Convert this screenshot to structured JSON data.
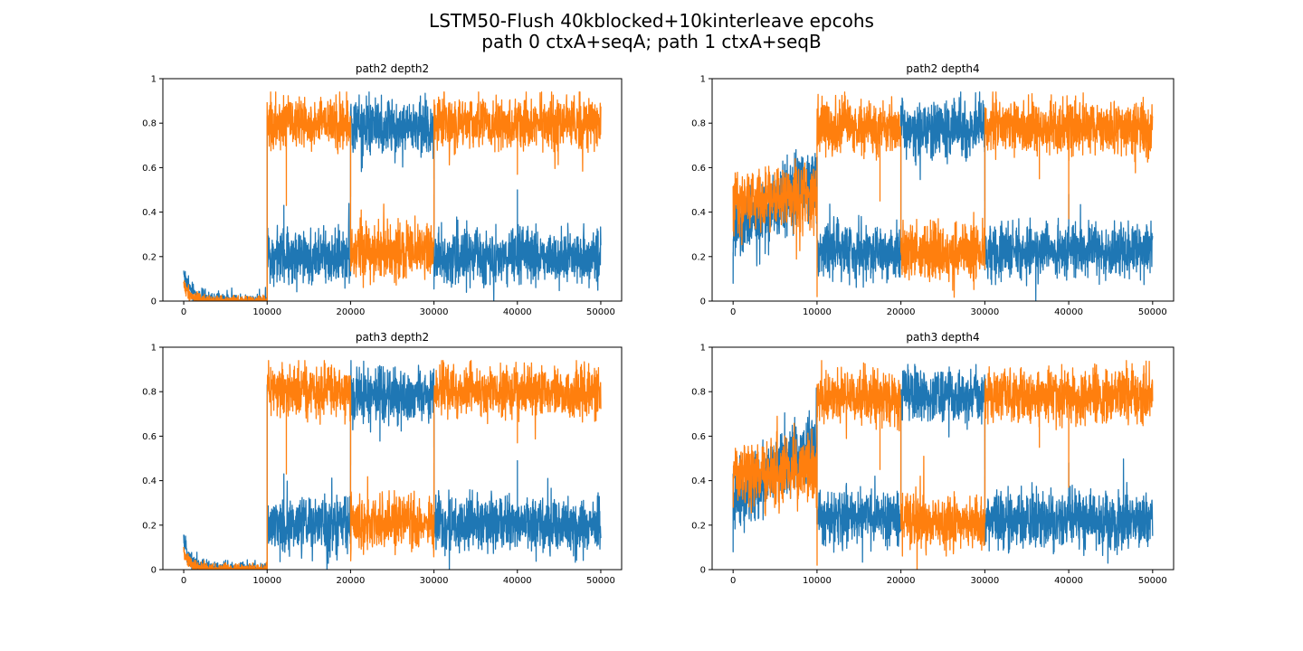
{
  "figure": {
    "title_line1": "LSTM50-Flush 40kblocked+10kinterleave epcohs",
    "title_line2": "path 0 ctxA+seqA; path 1 ctxA+seqB"
  },
  "colors": {
    "series_0": "#1f77b4",
    "series_1": "#ff7f0e"
  },
  "chart_data": [
    {
      "type": "line",
      "title": "path2 depth2",
      "xlim": [
        -2500,
        52500
      ],
      "ylim": [
        0,
        1
      ],
      "xticks": [
        0,
        10000,
        20000,
        30000,
        40000,
        50000
      ],
      "yticks": [
        0.0,
        0.2,
        0.4,
        0.6,
        0.8,
        1.0
      ],
      "grid": false,
      "series": [
        {
          "color": "#1f77b4",
          "segments": [
            {
              "x": [
                0,
                10000
              ],
              "start": 0.13,
              "end": 0.0,
              "decay": 900,
              "noise": 0.02
            },
            {
              "x": [
                10000,
                20000
              ],
              "mean": 0.2,
              "noise": 0.06
            },
            {
              "x": [
                20000,
                30000
              ],
              "mean": 0.78,
              "noise": 0.06
            },
            {
              "x": [
                30000,
                50000
              ],
              "mean": 0.2,
              "noise": 0.06
            }
          ],
          "spikes": [
            {
              "x": 10000,
              "y": 0.83
            },
            {
              "x": 12000,
              "y": 0.43
            },
            {
              "x": 30000,
              "y": 0.55
            },
            {
              "x": 40000,
              "y": 0.5
            }
          ]
        },
        {
          "color": "#ff7f0e",
          "segments": [
            {
              "x": [
                0,
                10000
              ],
              "start": 0.08,
              "end": 0.0,
              "decay": 800,
              "noise": 0.015
            },
            {
              "x": [
                10000,
                20000
              ],
              "mean": 0.8,
              "noise": 0.055
            },
            {
              "x": [
                20000,
                30000
              ],
              "mean": 0.22,
              "noise": 0.06
            },
            {
              "x": [
                30000,
                50000
              ],
              "mean": 0.8,
              "noise": 0.055
            }
          ],
          "spikes": [
            {
              "x": 10000,
              "y": 0.28
            },
            {
              "x": 12300,
              "y": 0.43
            },
            {
              "x": 20000,
              "y": 0.47
            },
            {
              "x": 30000,
              "y": 0.48
            },
            {
              "x": 40000,
              "y": 0.57
            }
          ]
        }
      ]
    },
    {
      "type": "line",
      "title": "path2 depth4",
      "xlim": [
        -2500,
        52500
      ],
      "ylim": [
        0,
        1
      ],
      "xticks": [
        0,
        10000,
        20000,
        30000,
        40000,
        50000
      ],
      "yticks": [
        0.0,
        0.2,
        0.4,
        0.6,
        0.8,
        1.0
      ],
      "grid": false,
      "series": [
        {
          "color": "#1f77b4",
          "segments": [
            {
              "x": [
                0,
                10000
              ],
              "start": 0.3,
              "end": 0.55,
              "noise": 0.07
            },
            {
              "x": [
                10000,
                20000
              ],
              "mean": 0.23,
              "noise": 0.06
            },
            {
              "x": [
                20000,
                30000
              ],
              "mean": 0.78,
              "noise": 0.06
            },
            {
              "x": [
                30000,
                50000
              ],
              "mean": 0.22,
              "noise": 0.06
            }
          ],
          "spikes": [
            {
              "x": 0,
              "y": 0.08
            },
            {
              "x": 10000,
              "y": 0.65
            },
            {
              "x": 30000,
              "y": 0.45
            },
            {
              "x": 40000,
              "y": 0.48
            }
          ]
        },
        {
          "color": "#ff7f0e",
          "segments": [
            {
              "x": [
                0,
                10000
              ],
              "start": 0.45,
              "end": 0.48,
              "noise": 0.07
            },
            {
              "x": [
                10000,
                20000
              ],
              "mean": 0.78,
              "noise": 0.06
            },
            {
              "x": [
                20000,
                30000
              ],
              "mean": 0.22,
              "noise": 0.06
            },
            {
              "x": [
                30000,
                50000
              ],
              "mean": 0.78,
              "noise": 0.06
            }
          ],
          "spikes": [
            {
              "x": 10000,
              "y": 0.02
            },
            {
              "x": 17500,
              "y": 0.45
            },
            {
              "x": 30000,
              "y": 0.42
            },
            {
              "x": 36500,
              "y": 0.55
            },
            {
              "x": 40000,
              "y": 0.37
            }
          ]
        }
      ]
    },
    {
      "type": "line",
      "title": "path3 depth2",
      "xlim": [
        -2500,
        52500
      ],
      "ylim": [
        0,
        1
      ],
      "xticks": [
        0,
        10000,
        20000,
        30000,
        40000,
        50000
      ],
      "yticks": [
        0.0,
        0.2,
        0.4,
        0.6,
        0.8,
        1.0
      ],
      "grid": false,
      "series": [
        {
          "color": "#1f77b4",
          "segments": [
            {
              "x": [
                0,
                10000
              ],
              "start": 0.13,
              "end": 0.0,
              "decay": 900,
              "noise": 0.02
            },
            {
              "x": [
                10000,
                20000
              ],
              "mean": 0.2,
              "noise": 0.06
            },
            {
              "x": [
                20000,
                30000
              ],
              "mean": 0.78,
              "noise": 0.06
            },
            {
              "x": [
                30000,
                50000
              ],
              "mean": 0.2,
              "noise": 0.06
            }
          ],
          "spikes": [
            {
              "x": 10000,
              "y": 0.83
            },
            {
              "x": 12000,
              "y": 0.43
            },
            {
              "x": 30000,
              "y": 0.55
            },
            {
              "x": 40000,
              "y": 0.49
            }
          ]
        },
        {
          "color": "#ff7f0e",
          "segments": [
            {
              "x": [
                0,
                10000
              ],
              "start": 0.08,
              "end": 0.0,
              "decay": 800,
              "noise": 0.015
            },
            {
              "x": [
                10000,
                20000
              ],
              "mean": 0.8,
              "noise": 0.055
            },
            {
              "x": [
                20000,
                30000
              ],
              "mean": 0.22,
              "noise": 0.06
            },
            {
              "x": [
                30000,
                50000
              ],
              "mean": 0.8,
              "noise": 0.055
            }
          ],
          "spikes": [
            {
              "x": 10000,
              "y": 0.28
            },
            {
              "x": 12300,
              "y": 0.43
            },
            {
              "x": 20000,
              "y": 0.47
            },
            {
              "x": 30000,
              "y": 0.48
            },
            {
              "x": 40000,
              "y": 0.57
            }
          ]
        }
      ]
    },
    {
      "type": "line",
      "title": "path3 depth4",
      "xlim": [
        -2500,
        52500
      ],
      "ylim": [
        0,
        1
      ],
      "xticks": [
        0,
        10000,
        20000,
        30000,
        40000,
        50000
      ],
      "yticks": [
        0.0,
        0.2,
        0.4,
        0.6,
        0.8,
        1.0
      ],
      "grid": false,
      "series": [
        {
          "color": "#1f77b4",
          "segments": [
            {
              "x": [
                0,
                10000
              ],
              "start": 0.3,
              "end": 0.58,
              "noise": 0.07
            },
            {
              "x": [
                10000,
                20000
              ],
              "mean": 0.23,
              "noise": 0.06
            },
            {
              "x": [
                20000,
                30000
              ],
              "mean": 0.78,
              "noise": 0.06
            },
            {
              "x": [
                30000,
                50000
              ],
              "mean": 0.22,
              "noise": 0.06
            }
          ],
          "spikes": [
            {
              "x": 0,
              "y": 0.08
            },
            {
              "x": 10000,
              "y": 0.65
            },
            {
              "x": 30000,
              "y": 0.45
            },
            {
              "x": 40000,
              "y": 0.48
            }
          ]
        },
        {
          "color": "#ff7f0e",
          "segments": [
            {
              "x": [
                0,
                10000
              ],
              "start": 0.42,
              "end": 0.46,
              "noise": 0.07
            },
            {
              "x": [
                10000,
                20000
              ],
              "mean": 0.78,
              "noise": 0.06
            },
            {
              "x": [
                20000,
                30000
              ],
              "mean": 0.22,
              "noise": 0.06
            },
            {
              "x": [
                30000,
                50000
              ],
              "mean": 0.78,
              "noise": 0.06
            }
          ],
          "spikes": [
            {
              "x": 10000,
              "y": 0.02
            },
            {
              "x": 17500,
              "y": 0.45
            },
            {
              "x": 30000,
              "y": 0.42
            },
            {
              "x": 36500,
              "y": 0.55
            },
            {
              "x": 40000,
              "y": 0.37
            }
          ]
        }
      ]
    }
  ]
}
